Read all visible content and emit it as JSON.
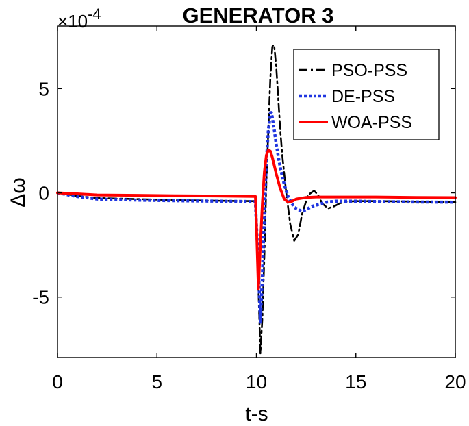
{
  "chart_data": {
    "type": "line",
    "title": "GENERATOR 3",
    "xlabel": "t-s",
    "ylabel": "Δω",
    "y_exponent_label": "×10",
    "y_exponent_power": "-4",
    "y_multiplier": 0.0001,
    "xlim": [
      0,
      20
    ],
    "ylim": [
      -7.9,
      8.0
    ],
    "xticks": [
      0,
      5,
      10,
      15,
      20
    ],
    "xtick_labels": [
      "0",
      "5",
      "10",
      "15",
      "20"
    ],
    "yticks": [
      -5,
      0,
      5
    ],
    "ytick_labels": [
      "-5",
      "0",
      "5"
    ],
    "grid": false,
    "legend_position": "top-right",
    "series": [
      {
        "name": "PSO-PSS",
        "color": "#000000",
        "style": "dashdot",
        "x": [
          0,
          1,
          2,
          4,
          6,
          8,
          9.95,
          10.0,
          10.1,
          10.2,
          10.3,
          10.4,
          10.5,
          10.6,
          10.7,
          10.8,
          10.85,
          10.9,
          11.0,
          11.1,
          11.2,
          11.3,
          11.5,
          11.7,
          11.9,
          12.1,
          12.3,
          12.6,
          12.9,
          13.1,
          13.3,
          13.6,
          13.9,
          14.2,
          14.6,
          15,
          16,
          18,
          20
        ],
        "y": [
          0,
          -0.15,
          -0.25,
          -0.3,
          -0.35,
          -0.38,
          -0.4,
          -1.5,
          -4.5,
          -7.7,
          -6.0,
          -3.0,
          0.5,
          3.0,
          5.5,
          7.0,
          7.1,
          7.0,
          6.0,
          4.5,
          3.0,
          1.8,
          0.0,
          -1.5,
          -2.3,
          -2.0,
          -1.0,
          -0.1,
          0.1,
          -0.1,
          -0.5,
          -0.75,
          -0.65,
          -0.5,
          -0.42,
          -0.4,
          -0.4,
          -0.42,
          -0.45
        ]
      },
      {
        "name": "DE-PSS",
        "color": "#1f35e0",
        "style": "dotted",
        "x": [
          0,
          1,
          2,
          4,
          6,
          8,
          9.95,
          10.0,
          10.1,
          10.2,
          10.3,
          10.4,
          10.5,
          10.6,
          10.7,
          10.75,
          10.8,
          10.9,
          11.0,
          11.2,
          11.4,
          11.6,
          11.9,
          12.3,
          12.8,
          13.5,
          14,
          15,
          16,
          18,
          20
        ],
        "y": [
          0,
          -0.18,
          -0.3,
          -0.35,
          -0.38,
          -0.4,
          -0.42,
          -1.5,
          -3.5,
          -6.2,
          -4.0,
          -1.0,
          1.5,
          3.0,
          3.8,
          3.85,
          3.6,
          3.0,
          2.3,
          1.2,
          0.4,
          -0.2,
          -0.7,
          -0.9,
          -0.65,
          -0.45,
          -0.4,
          -0.4,
          -0.42,
          -0.44,
          -0.45
        ]
      },
      {
        "name": "WOA-PSS",
        "color": "#ff0000",
        "style": "solid",
        "x": [
          0,
          1,
          2,
          4,
          6,
          8,
          9.95,
          10.0,
          10.1,
          10.2,
          10.3,
          10.4,
          10.5,
          10.6,
          10.7,
          10.8,
          10.9,
          11.0,
          11.2,
          11.4,
          11.6,
          11.8,
          12.0,
          12.5,
          13,
          14,
          15,
          16,
          18,
          20
        ],
        "y": [
          0,
          -0.05,
          -0.1,
          -0.12,
          -0.14,
          -0.15,
          -0.17,
          -1.5,
          -4.6,
          -2.5,
          -0.5,
          1.0,
          1.8,
          2.05,
          2.0,
          1.7,
          1.3,
          0.9,
          0.2,
          -0.3,
          -0.45,
          -0.4,
          -0.3,
          -0.22,
          -0.2,
          -0.2,
          -0.2,
          -0.2,
          -0.22,
          -0.23
        ]
      }
    ]
  }
}
